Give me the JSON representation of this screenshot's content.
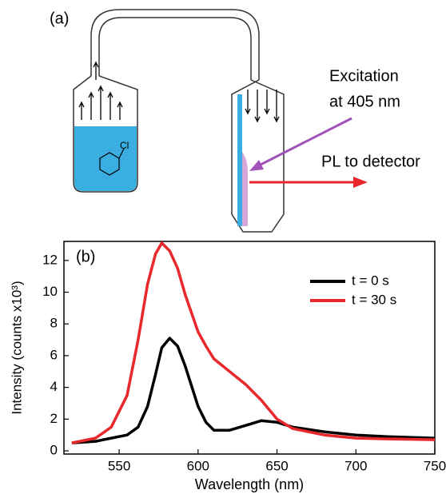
{
  "diagram": {
    "panel_label": "(a)",
    "molecule_label": "Cl",
    "excitation_line1": "Excitation",
    "excitation_line2": "at 405 nm",
    "pl_label": "PL to detector"
  },
  "chart_data": {
    "type": "line",
    "panel_label": "(b)",
    "x_label": "Wavelength (nm)",
    "y_label": "Intensity (counts x10³)",
    "x": [
      520,
      535,
      545,
      555,
      562,
      568,
      573,
      577,
      582,
      587,
      592,
      600,
      605,
      610,
      620,
      630,
      640,
      650,
      660,
      680,
      700,
      720,
      750
    ],
    "series": [
      {
        "name": "t = 0 s",
        "color": "#000000",
        "values": [
          0.5,
          0.6,
          0.8,
          1.0,
          1.5,
          2.8,
          4.8,
          6.5,
          7.1,
          6.6,
          5.3,
          2.8,
          1.8,
          1.3,
          1.3,
          1.6,
          1.9,
          1.8,
          1.5,
          1.2,
          1.0,
          0.9,
          0.8
        ]
      },
      {
        "name": "t = 30 s",
        "color": "#e8282b",
        "values": [
          0.5,
          0.8,
          1.5,
          3.5,
          7.0,
          10.5,
          12.4,
          13.1,
          12.6,
          11.5,
          9.8,
          7.5,
          6.6,
          5.8,
          5.0,
          4.2,
          3.2,
          2.0,
          1.4,
          1.0,
          0.8,
          0.75,
          0.7
        ]
      }
    ],
    "xlim": [
      515,
      750
    ],
    "xticks": [
      550,
      600,
      650,
      700,
      750
    ],
    "ylim": [
      -0.2,
      13.2
    ],
    "yticks": [
      0,
      2,
      4,
      6,
      8,
      10,
      12
    ],
    "legend": "upper right"
  }
}
